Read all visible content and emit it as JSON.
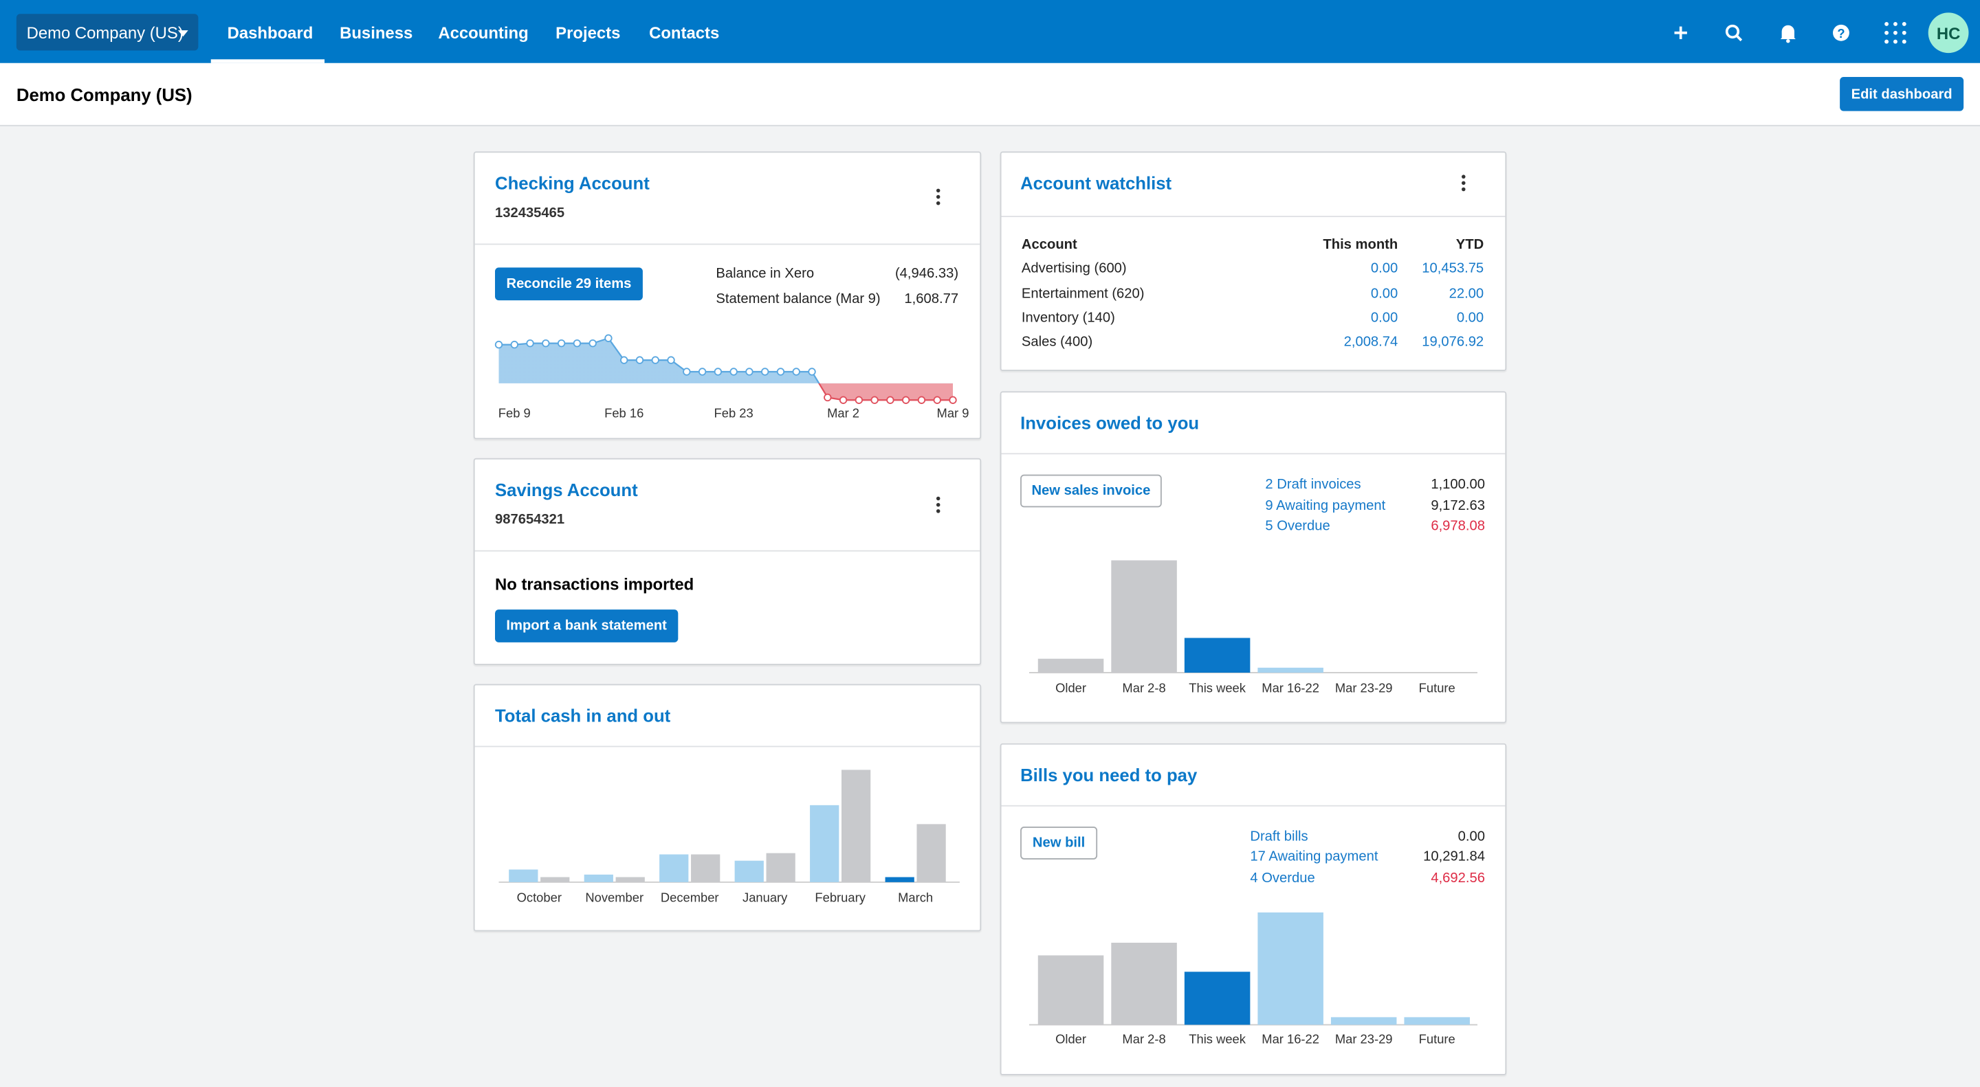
{
  "topbar": {
    "organisation": "Demo Company (US)",
    "nav": [
      "Dashboard",
      "Business",
      "Accounting",
      "Projects",
      "Contacts"
    ],
    "avatar": "HC"
  },
  "header": {
    "title": "Demo Company (US)",
    "button": "Edit dashboard"
  },
  "checking_account": {
    "title": "Checking Account",
    "number": "132435465",
    "button": "Reconcile 29 items",
    "balances": [
      {
        "label": "Balance in Xero",
        "amount": "(4,946.33)"
      },
      {
        "label": "Statement balance (Mar 9)",
        "amount": "1,608.77"
      }
    ]
  },
  "savings_account": {
    "title": "Savings Account",
    "number": "987654321",
    "message": "No transactions imported",
    "button": "Import a bank statement"
  },
  "total_cash": {
    "title": "Total cash in and out"
  },
  "account_watchlist": {
    "title": "Account watchlist",
    "columns": [
      "Account",
      "This month",
      "YTD"
    ],
    "rows": [
      [
        "Advertising (600)",
        "0.00",
        "10,453.75"
      ],
      [
        "Entertainment (620)",
        "0.00",
        "22.00"
      ],
      [
        "Inventory (140)",
        "0.00",
        "0.00"
      ],
      [
        "Sales (400)",
        "2,008.74",
        "19,076.92"
      ]
    ]
  },
  "invoices": {
    "title": "Invoices owed to you",
    "button": "New sales invoice",
    "summary": [
      {
        "label": "2 Draft invoices",
        "amount": "1,100.00"
      },
      {
        "label": "9 Awaiting payment",
        "amount": "9,172.63"
      },
      {
        "label": "5 Overdue",
        "amount": "6,978.08"
      }
    ]
  },
  "bills": {
    "title": "Bills you need to pay",
    "button": "New bill",
    "summary": [
      {
        "label": "Draft bills",
        "amount": "0.00"
      },
      {
        "label": "17 Awaiting payment",
        "amount": "10,291.84"
      },
      {
        "label": "4 Overdue",
        "amount": "4,692.56"
      }
    ]
  },
  "chart_data": [
    {
      "type": "area",
      "categories": [
        null,
        "Feb 9",
        null,
        null,
        null,
        null,
        null,
        null,
        "Feb 16",
        null,
        null,
        null,
        null,
        null,
        null,
        "Feb 23",
        null,
        null,
        null,
        null,
        null,
        null,
        "Mar 2",
        null,
        null,
        null,
        null,
        null,
        null,
        "Mar 9"
      ],
      "values": [
        11400,
        11400,
        11800,
        11800,
        11800,
        11800,
        11800,
        13300,
        6840,
        6840,
        6840,
        6840,
        3420,
        3420,
        3420,
        3420,
        3420,
        3420,
        3420,
        3420,
        3420,
        -4180,
        -4946,
        -4946,
        -4946,
        -4946,
        -4946,
        -4946,
        -4946,
        -4946
      ],
      "color": "#5aa7e0",
      "negative_color": "#e0505d"
    },
    {
      "type": "grouped_bar",
      "categories": [
        "October",
        "November",
        "December",
        "January",
        "February",
        "March"
      ],
      "series": [
        {
          "values": [
            10,
            6,
            22,
            17,
            61,
            4
          ],
          "colors": [
            "#a6d3f0",
            "#a6d3f0",
            "#a6d3f0",
            "#a6d3f0",
            "#a6d3f0",
            "#0a77c9"
          ]
        },
        {
          "values": [
            4,
            4,
            22,
            23,
            89,
            46
          ],
          "color": "#c8c9cc"
        }
      ]
    },
    {
      "type": "bar",
      "categories": [
        "Older",
        "Mar 2-8",
        "This week",
        "Mar 16-22",
        "Mar 23-29",
        "Future"
      ],
      "values": [
        770,
        6208,
        1920,
        274,
        0,
        0
      ],
      "colors": [
        "#c8c9cc",
        "#c8c9cc",
        "#0a77c9",
        "#a6d3f0",
        "#a6d3f0",
        "#a6d3f0"
      ]
    },
    {
      "type": "bar",
      "categories": [
        "Older",
        "Mar 2-8",
        "This week",
        "Mar 16-22",
        "Mar 23-29",
        "Future"
      ],
      "values": [
        2150,
        2542,
        1642,
        3480,
        235,
        235
      ],
      "colors": [
        "#c8c9cc",
        "#c8c9cc",
        "#0a77c9",
        "#a6d3f0",
        "#a6d3f0",
        "#a6d3f0"
      ]
    }
  ]
}
